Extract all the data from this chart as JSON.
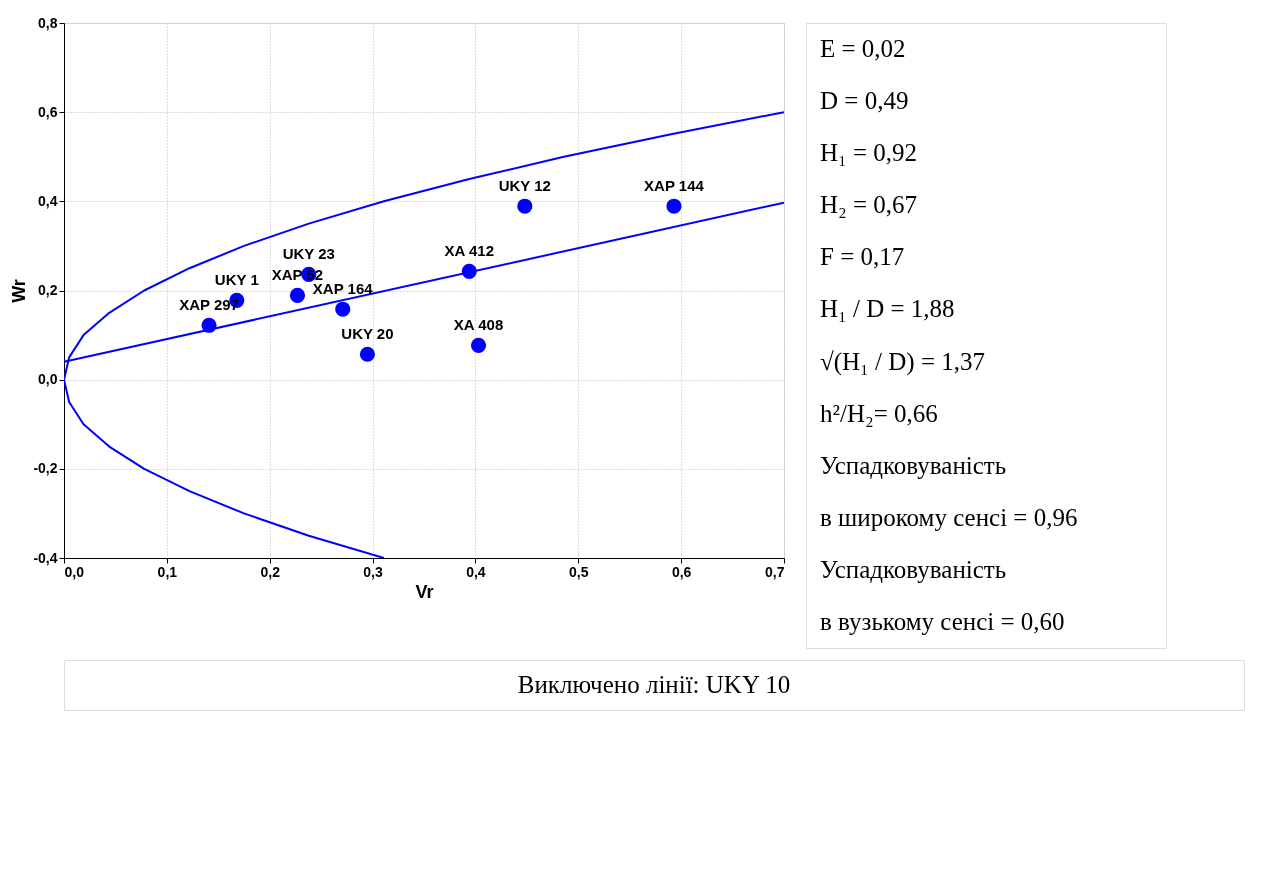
{
  "chart_data": [
    {
      "type": "scatter",
      "xlabel": "Vr",
      "ylabel": "Wr",
      "xlim": [
        0,
        0.7
      ],
      "ylim": [
        -0.4,
        0.8
      ],
      "xticks": [
        {
          "value": 0,
          "label": "0,0"
        },
        {
          "value": 0.1,
          "label": "0,1"
        },
        {
          "value": 0.2,
          "label": "0,2"
        },
        {
          "value": 0.3,
          "label": "0,3"
        },
        {
          "value": 0.4,
          "label": "0,4"
        },
        {
          "value": 0.5,
          "label": "0,5"
        },
        {
          "value": 0.6,
          "label": "0,6"
        },
        {
          "value": 0.7,
          "label": "0,7"
        }
      ],
      "yticks": [
        {
          "value": -0.4,
          "label": "-0,4"
        },
        {
          "value": -0.2,
          "label": "-0,2"
        },
        {
          "value": 0,
          "label": "0,0"
        },
        {
          "value": 0.2,
          "label": "0,2"
        },
        {
          "value": 0.4,
          "label": "0,4"
        },
        {
          "value": 0.6,
          "label": "0,6"
        },
        {
          "value": 0.8,
          "label": "0,8"
        }
      ],
      "grid": true,
      "legend": false,
      "series": [
        {
          "type": "scatter",
          "marker": "circle",
          "color": "#0000ff",
          "x": [
            0.141,
            0.168,
            0.227,
            0.238,
            0.271,
            0.295,
            0.403,
            0.394,
            0.448,
            0.593
          ],
          "values": [
            0.122,
            0.178,
            0.189,
            0.236,
            0.158,
            0.057,
            0.077,
            0.243,
            0.389,
            0.389
          ]
        },
        {
          "type": "line",
          "marker": "none",
          "color": "#0000ff",
          "x": [
            0,
            0.7
          ],
          "values": [
            0.04,
            0.397
          ]
        },
        {
          "type": "line",
          "marker": "none",
          "color": "#0000ff",
          "x": [
            0.311,
            0.238,
            0.175,
            0.122,
            0.078,
            0.044,
            0.019,
            0.005,
            0,
            0.005,
            0.019,
            0.044,
            0.078,
            0.122,
            0.175,
            0.238,
            0.311,
            0.394,
            0.486,
            0.589,
            0.7
          ],
          "values": [
            -0.4,
            -0.35,
            -0.3,
            -0.25,
            -0.2,
            -0.15,
            -0.1,
            -0.05,
            0,
            0.05,
            0.1,
            0.15,
            0.2,
            0.25,
            0.3,
            0.35,
            0.4,
            0.45,
            0.5,
            0.55,
            0.6
          ]
        }
      ],
      "annotations": [
        {
          "text": "XAP 297",
          "x": 0.141,
          "y": 0.122
        },
        {
          "text": "UKY 1",
          "x": 0.168,
          "y": 0.178
        },
        {
          "text": "XAP 52",
          "x": 0.227,
          "y": 0.189
        },
        {
          "text": "UKY 23",
          "x": 0.238,
          "y": 0.236
        },
        {
          "text": "XAP 164",
          "x": 0.271,
          "y": 0.158
        },
        {
          "text": "UKY 20",
          "x": 0.295,
          "y": 0.057
        },
        {
          "text": "XA 408",
          "x": 0.403,
          "y": 0.077
        },
        {
          "text": "XA 412",
          "x": 0.394,
          "y": 0.243
        },
        {
          "text": "UKY 12",
          "x": 0.448,
          "y": 0.389
        },
        {
          "text": "XAP 144",
          "x": 0.593,
          "y": 0.389
        },
        "Виключено лінії: UKY 10"
      ]
    },
    {
      "type": "other",
      "annotations": [
        "E = 0,02",
        "D = 0,49",
        "H₁ = 0,92",
        "H₂ = 0,67",
        "F = 0,17",
        "H₁ / D = 1,88",
        "√(H₁ / D) = 1,37",
        "h²/H₂= 0,66",
        "Успадковуваність",
        "в широкому сенсі = 0,96",
        "Успадковуваність",
        "в вузькому сенсі = 0,60"
      ]
    }
  ]
}
